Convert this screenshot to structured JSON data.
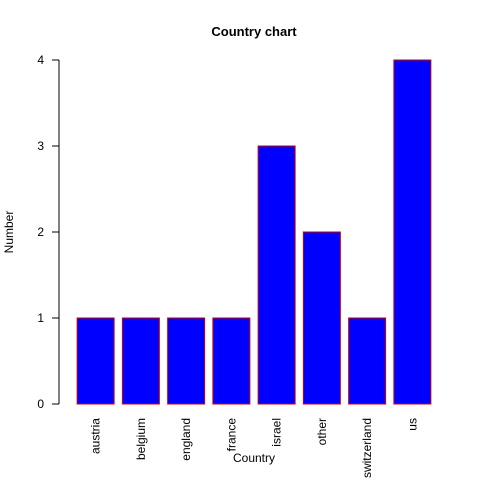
{
  "chart_data": {
    "type": "bar",
    "title": "Country chart",
    "xlabel": "Country",
    "ylabel": "Number",
    "categories": [
      "austria",
      "belgium",
      "england",
      "france",
      "israel",
      "other",
      "switzerland",
      "us"
    ],
    "values": [
      1,
      1,
      1,
      1,
      3,
      2,
      1,
      4
    ],
    "yticks": [
      "0",
      "1",
      "2",
      "3",
      "4"
    ],
    "ylim": [
      0,
      4
    ],
    "grid": false,
    "legend": "none",
    "bar_fill": "#0000ff",
    "bar_border": "#cc0000"
  }
}
